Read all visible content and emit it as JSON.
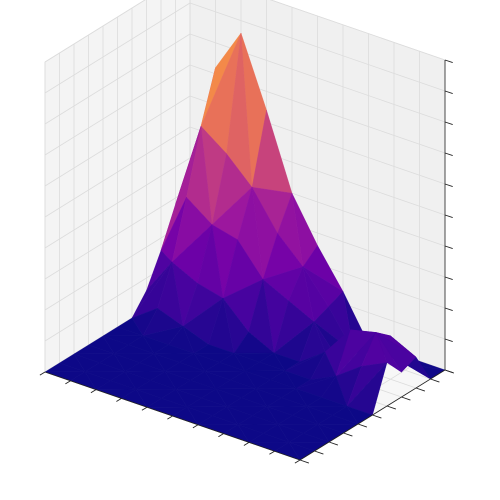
{
  "chart_data": {
    "type": "surface-3d",
    "title": "",
    "xlabel": "",
    "ylabel": "",
    "zlabel": "",
    "colormap": [
      "#0d0887",
      "#46039f",
      "#7201a8",
      "#9c179e",
      "#bd3786",
      "#d8576b",
      "#ed7953",
      "#fb9f3a",
      "#fdca26",
      "#f0f921"
    ],
    "show_tick_labels": false,
    "grid": true,
    "x": [
      0,
      1,
      2,
      3,
      4,
      5,
      6,
      7,
      8,
      9,
      10
    ],
    "y": [
      0,
      1,
      2,
      3,
      4,
      5,
      6,
      7,
      8,
      9,
      10
    ],
    "z": [
      [
        0,
        0,
        0,
        0,
        0,
        0,
        0,
        0,
        0,
        0,
        0
      ],
      [
        0,
        0,
        0,
        0,
        0,
        0,
        0,
        0,
        0,
        0,
        0
      ],
      [
        0,
        0,
        0,
        0,
        0,
        0,
        0,
        0,
        0,
        0,
        0
      ],
      [
        0,
        0,
        0,
        0,
        0,
        0,
        0,
        0,
        0,
        0,
        0
      ],
      [
        0,
        0,
        0,
        0,
        0,
        0,
        0,
        0,
        0,
        0,
        0
      ],
      [
        0,
        0,
        0,
        0,
        0,
        0,
        0,
        0,
        0,
        0,
        0
      ],
      [
        0,
        0.06,
        0.03,
        0,
        0,
        0,
        0,
        0,
        0.04,
        0.1,
        0.14
      ],
      [
        0.06,
        0.18,
        0.14,
        0.12,
        0.04,
        0,
        0,
        0.06,
        0.16,
        0.18,
        0.08
      ],
      [
        0.16,
        0.36,
        0.3,
        0.28,
        0.18,
        0.14,
        0.1,
        0,
        0.08,
        0.14,
        0.1
      ],
      [
        0.28,
        0.56,
        0.5,
        0.42,
        0.3,
        0.22,
        0.12,
        0,
        0.04,
        0.02,
        0
      ],
      [
        0.34,
        0.72,
        0.86,
        0.64,
        0.4,
        0.26,
        0.14,
        0,
        0,
        0,
        0
      ]
    ],
    "x_ticks": [
      0,
      1,
      2,
      3,
      4,
      5,
      6,
      7,
      8,
      9,
      10
    ],
    "y_ticks": [
      0,
      1,
      2,
      3,
      4,
      5,
      6,
      7,
      8,
      9,
      10
    ],
    "z_ticks": [
      0,
      0.1,
      0.2,
      0.3,
      0.4,
      0.5,
      0.6,
      0.7,
      0.8,
      0.9,
      1.0
    ],
    "zlim": [
      0,
      1.0
    ]
  }
}
